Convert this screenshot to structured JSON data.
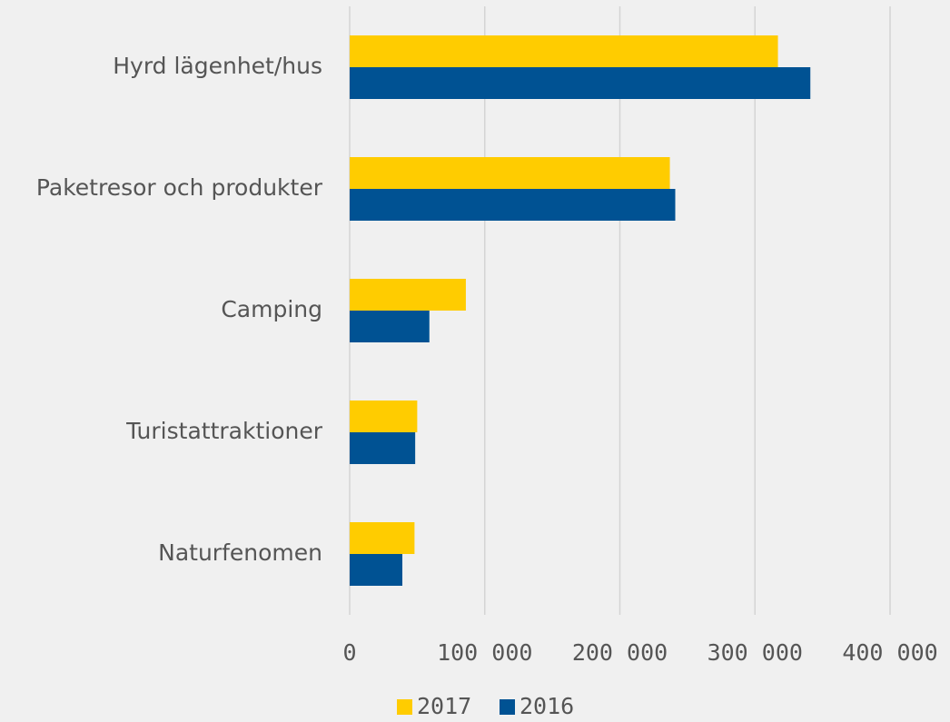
{
  "chart_data": {
    "type": "bar",
    "orientation": "horizontal",
    "categories": [
      "Hyrd lägenhet/hus",
      "Paketresor och produkter",
      "Camping",
      "Turistattraktioner",
      "Naturfenomen"
    ],
    "series": [
      {
        "name": "2017",
        "color": "#ffcc00",
        "values": [
          317000,
          237000,
          86000,
          50000,
          48000
        ]
      },
      {
        "name": "2016",
        "color": "#005293",
        "values": [
          341000,
          241000,
          59000,
          48500,
          39000
        ]
      }
    ],
    "xlim": [
      0,
      400000
    ],
    "xticks": [
      0,
      {
        "value": 100000,
        "label": "100 000"
      },
      {
        "value": 200000,
        "label": "200 000"
      },
      {
        "value": 300000,
        "label": "300 000"
      },
      {
        "value": 400000,
        "label": "400 000"
      }
    ],
    "grid": true,
    "legend": "bottom"
  }
}
